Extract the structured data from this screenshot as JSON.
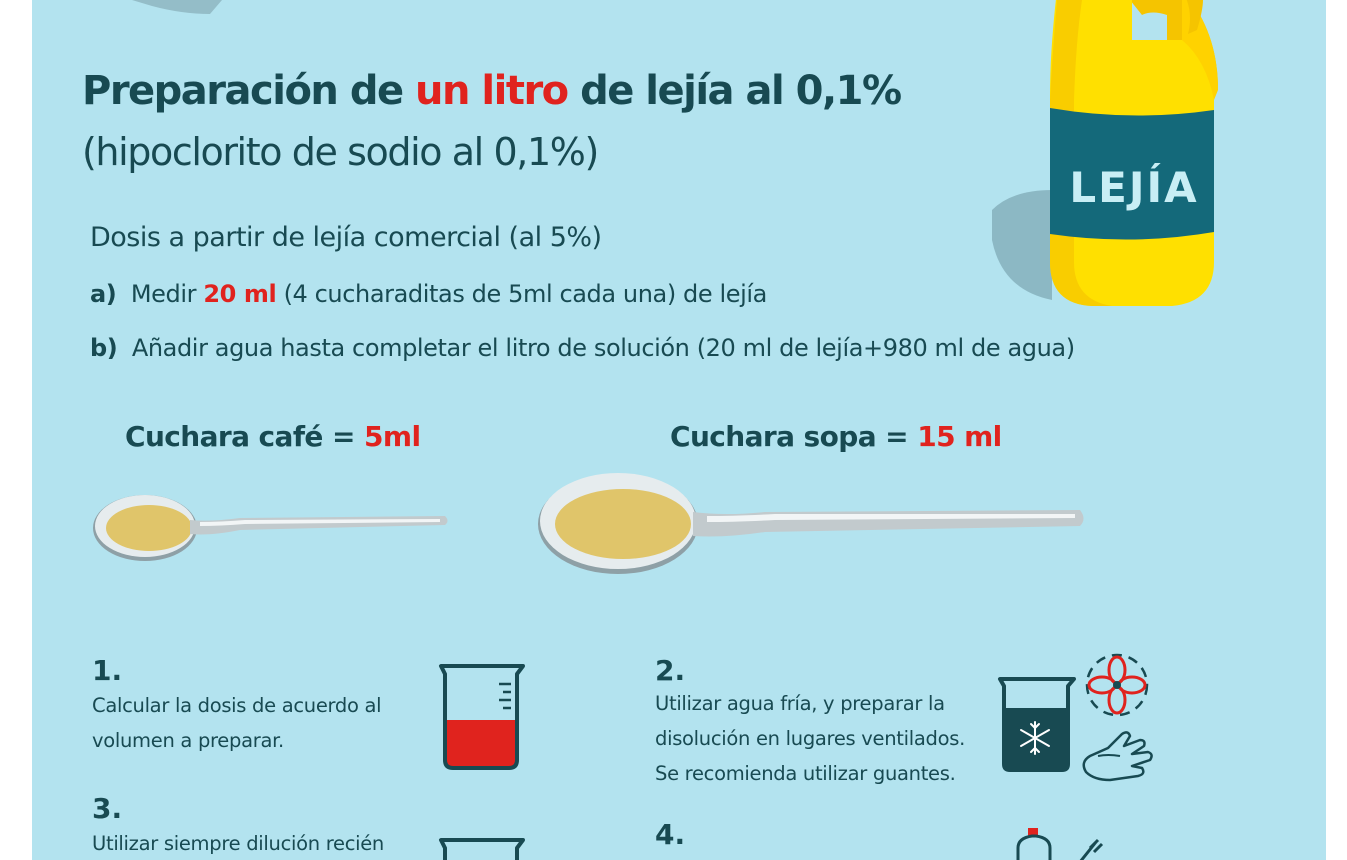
{
  "title": {
    "prefix": "Preparación de",
    "highlight": "un litro",
    "suffix": "de lejía al 0,1%",
    "subtitle": "(hipoclorito de sodio al 0,1%)"
  },
  "bottle": {
    "label": "LEJÍA",
    "body_color": "#ffe000",
    "label_color": "#14697a"
  },
  "dosis": {
    "heading": "Dosis a partir de lejía comercial (al 5%)",
    "step_a": {
      "marker": "a)",
      "pre": "Medir",
      "amount": "20 ml",
      "post": "(4 cucharaditas de 5ml cada una) de lejía"
    },
    "step_b": {
      "marker": "b)",
      "text": "Añadir agua hasta completar el litro de solución (20 ml de lejía+980 ml de agua)"
    }
  },
  "spoons": {
    "cafe": {
      "name": "Cuchara café",
      "eq": "=",
      "value": "5ml"
    },
    "sopa": {
      "name": "Cuchara sopa",
      "eq": "=",
      "value": "15 ml"
    }
  },
  "instructions": [
    {
      "num": "1.",
      "lines": [
        "Calcular la dosis de acuerdo al",
        "volumen a preparar."
      ],
      "icon": "beaker-red-liquid-icon"
    },
    {
      "num": "2.",
      "lines": [
        "Utilizar agua fría, y preparar la",
        "disolución en lugares ventilados.",
        "Se recomienda utilizar guantes."
      ],
      "icon": "beaker-cold-water-icon"
    },
    {
      "num": "3.",
      "lines": [
        "Utilizar siempre dilución recién"
      ],
      "icon": "beaker-icon"
    },
    {
      "num": "4.",
      "lines": [],
      "icon": "spray-bottle-icon"
    }
  ],
  "colors": {
    "background": "#b3e3ef",
    "text": "#184a52",
    "accent": "#e0231e"
  }
}
